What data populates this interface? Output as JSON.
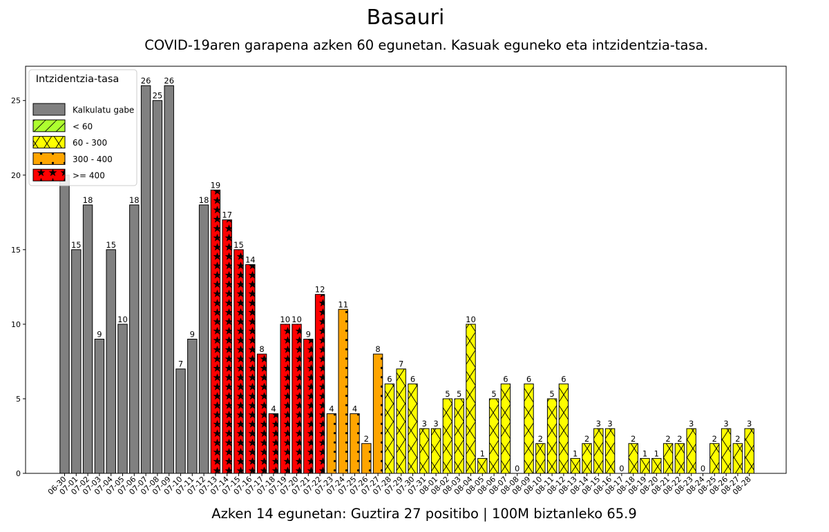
{
  "chart_data": {
    "type": "bar",
    "title": "Basauri",
    "subtitle": "COVID-19aren garapena azken 60 egunetan. Kasuak eguneko eta intzidentzia-tasa.",
    "footer": "Azken 14 egunetan: Guztira 27 positibo | 100M biztanleko 65.9",
    "categories": [
      "06-30",
      "07-01",
      "07-02",
      "07-03",
      "07-04",
      "07-05",
      "07-06",
      "07-07",
      "07-08",
      "07-09",
      "07-10",
      "07-11",
      "07-12",
      "07-13",
      "07-14",
      "07-15",
      "07-16",
      "07-17",
      "07-18",
      "07-19",
      "07-20",
      "07-21",
      "07-22",
      "07-23",
      "07-24",
      "07-25",
      "07-26",
      "07-27",
      "07-28",
      "07-29",
      "07-30",
      "07-31",
      "08-01",
      "08-02",
      "08-03",
      "08-04",
      "08-05",
      "08-06",
      "08-07",
      "08-08",
      "08-09",
      "08-10",
      "08-11",
      "08-12",
      "08-13",
      "08-14",
      "08-15",
      "08-16",
      "08-17",
      "08-18",
      "08-19",
      "08-20",
      "08-21",
      "08-22",
      "08-23",
      "08-24",
      "08-25",
      "08-26",
      "08-27",
      "08-28"
    ],
    "values": [
      20,
      15,
      18,
      9,
      15,
      10,
      18,
      26,
      25,
      26,
      7,
      9,
      18,
      19,
      17,
      15,
      14,
      8,
      4,
      10,
      10,
      9,
      12,
      4,
      11,
      4,
      2,
      8,
      6,
      7,
      6,
      3,
      3,
      5,
      5,
      10,
      1,
      5,
      6,
      0,
      6,
      2,
      5,
      6,
      1,
      2,
      3,
      3,
      0,
      2,
      1,
      1,
      2,
      2,
      3,
      0,
      2,
      3,
      2,
      3
    ],
    "value_labels": [
      "",
      "15",
      "18",
      "9",
      "15",
      "10",
      "18",
      "26",
      "25",
      "26",
      "7",
      "9",
      "18",
      "19",
      "17",
      "15",
      "14",
      "8",
      "4",
      "10",
      "10",
      "9",
      "12",
      "4",
      "11",
      "4",
      "2",
      "8",
      "6",
      "7",
      "6",
      "3",
      "3",
      "5",
      "5",
      "10",
      "1",
      "5",
      "6",
      "0",
      "6",
      "2",
      "5",
      "6",
      "1",
      "2",
      "3",
      "3",
      "0",
      "2",
      "1",
      "1",
      "2",
      "2",
      "3",
      "0",
      "2",
      "3",
      "2",
      "3"
    ],
    "incidence_class": [
      0,
      0,
      0,
      0,
      0,
      0,
      0,
      0,
      0,
      0,
      0,
      0,
      0,
      4,
      4,
      4,
      4,
      4,
      4,
      4,
      4,
      4,
      4,
      3,
      3,
      3,
      3,
      3,
      2,
      2,
      2,
      2,
      2,
      2,
      2,
      2,
      2,
      2,
      2,
      2,
      2,
      2,
      2,
      2,
      2,
      2,
      2,
      2,
      2,
      2,
      2,
      2,
      2,
      2,
      2,
      2,
      2,
      2,
      2,
      2
    ],
    "ylim": [
      0,
      27.3
    ],
    "yticks": [
      0,
      5,
      10,
      15,
      20,
      25
    ],
    "ytick_labels": [
      "0",
      "5",
      "10",
      "15",
      "20",
      "25"
    ],
    "xlabel": "",
    "ylabel": "",
    "grid": false,
    "legend": {
      "title": "Intzidentzia-tasa",
      "placement": "upper-left",
      "entries": [
        {
          "label": "Kalkulatu gabe",
          "color": "#808080",
          "pattern": "none"
        },
        {
          "label": "< 60",
          "color": "#adff2f",
          "pattern": "diagonal"
        },
        {
          "label": "60 - 300",
          "color": "#ffff00",
          "pattern": "cross"
        },
        {
          "label": "300 - 400",
          "color": "#ffa500",
          "pattern": "dots"
        },
        {
          "label": ">= 400",
          "color": "#ff0000",
          "pattern": "stars"
        }
      ]
    }
  }
}
